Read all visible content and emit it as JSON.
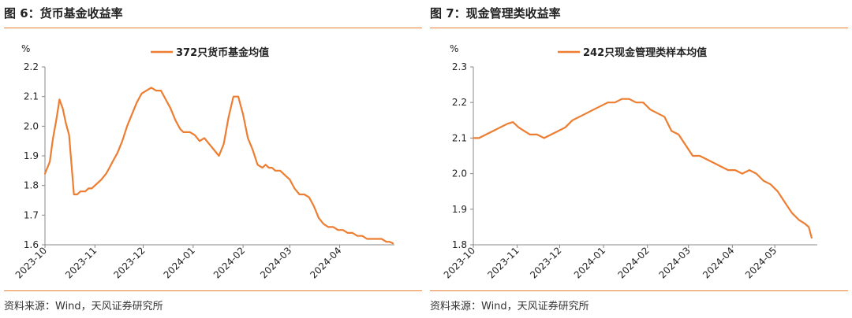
{
  "theme": {
    "line_color": "#ED7D31",
    "rule_color": "#ED7D31",
    "axis_color": "#888888"
  },
  "chart_data": [
    {
      "type": "line",
      "title": "图 6：货币基金收益率",
      "source": "资料来源：Wind，天风证券研究所",
      "ylabel": "%",
      "ylim": [
        1.6,
        2.2
      ],
      "yticks": [
        "1.6",
        "1.7",
        "1.8",
        "1.9",
        "2.0",
        "2.1",
        "2.2"
      ],
      "xlim": [
        "2023-10-01",
        "2024-05-05"
      ],
      "xticks": [
        {
          "date": "2023-10-01",
          "label": "2023-10"
        },
        {
          "date": "2023-11-01",
          "label": "2023-11"
        },
        {
          "date": "2023-12-01",
          "label": "2023-12"
        },
        {
          "date": "2024-01-01",
          "label": "2024-01"
        },
        {
          "date": "2024-02-01",
          "label": "2024-02"
        },
        {
          "date": "2024-03-01",
          "label": "2024-03"
        },
        {
          "date": "2024-04-01",
          "label": "2024-04"
        }
      ],
      "series": [
        {
          "name": "372只货币基金均值",
          "x": [
            "2023-10-01",
            "2023-10-04",
            "2023-10-06",
            "2023-10-08",
            "2023-10-10",
            "2023-10-12",
            "2023-10-14",
            "2023-10-16",
            "2023-10-19",
            "2023-10-20",
            "2023-10-21",
            "2023-10-23",
            "2023-10-26",
            "2023-10-28",
            "2023-10-30",
            "2023-11-01",
            "2023-11-03",
            "2023-11-05",
            "2023-11-08",
            "2023-11-10",
            "2023-11-12",
            "2023-11-15",
            "2023-11-18",
            "2023-11-21",
            "2023-11-24",
            "2023-11-27",
            "2023-11-30",
            "2023-12-03",
            "2023-12-06",
            "2023-12-09",
            "2023-12-12",
            "2023-12-15",
            "2023-12-18",
            "2023-12-21",
            "2023-12-24",
            "2023-12-26",
            "2023-12-28",
            "2023-12-30",
            "2024-01-02",
            "2024-01-05",
            "2024-01-08",
            "2024-01-11",
            "2024-01-14",
            "2024-01-17",
            "2024-01-20",
            "2024-01-23",
            "2024-01-26",
            "2024-01-29",
            "2024-02-01",
            "2024-02-04",
            "2024-02-07",
            "2024-02-10",
            "2024-02-13",
            "2024-02-15",
            "2024-02-17",
            "2024-02-19",
            "2024-02-21",
            "2024-02-24",
            "2024-02-26",
            "2024-02-28",
            "2024-03-01",
            "2024-03-04",
            "2024-03-07",
            "2024-03-10",
            "2024-03-13",
            "2024-03-16",
            "2024-03-19",
            "2024-03-22",
            "2024-03-25",
            "2024-03-28",
            "2024-03-31",
            "2024-04-03",
            "2024-04-06",
            "2024-04-09",
            "2024-04-12",
            "2024-04-15",
            "2024-04-18",
            "2024-04-21",
            "2024-04-24",
            "2024-04-27",
            "2024-04-30",
            "2024-05-02",
            "2024-05-04"
          ],
          "y": [
            1.84,
            1.88,
            1.96,
            2.02,
            2.09,
            2.06,
            2.01,
            1.97,
            1.77,
            1.77,
            1.77,
            1.78,
            1.78,
            1.79,
            1.79,
            1.8,
            1.81,
            1.82,
            1.84,
            1.86,
            1.88,
            1.91,
            1.95,
            2.0,
            2.04,
            2.08,
            2.11,
            2.12,
            2.13,
            2.12,
            2.12,
            2.09,
            2.06,
            2.02,
            1.99,
            1.98,
            1.98,
            1.98,
            1.97,
            1.95,
            1.96,
            1.94,
            1.92,
            1.9,
            1.94,
            2.03,
            2.1,
            2.1,
            2.04,
            1.96,
            1.92,
            1.87,
            1.86,
            1.87,
            1.86,
            1.86,
            1.85,
            1.85,
            1.84,
            1.83,
            1.82,
            1.79,
            1.77,
            1.77,
            1.76,
            1.73,
            1.69,
            1.67,
            1.66,
            1.66,
            1.65,
            1.65,
            1.64,
            1.64,
            1.63,
            1.63,
            1.62,
            1.62,
            1.62,
            1.62,
            1.61,
            1.61,
            1.605
          ]
        }
      ]
    },
    {
      "type": "line",
      "title": "图 7：现金管理类收益率",
      "source": "资料来源：Wind，天风证券研究所",
      "ylabel": "%",
      "ylim": [
        1.8,
        2.3
      ],
      "yticks": [
        "1.8",
        "1.9",
        "2.0",
        "2.1",
        "2.2",
        "2.3"
      ],
      "xlim": [
        "2023-10-01",
        "2024-05-31"
      ],
      "xticks": [
        {
          "date": "2023-10-01",
          "label": "2023-10"
        },
        {
          "date": "2023-11-01",
          "label": "2023-11"
        },
        {
          "date": "2023-12-01",
          "label": "2023-12"
        },
        {
          "date": "2024-01-01",
          "label": "2024-01"
        },
        {
          "date": "2024-02-01",
          "label": "2024-02"
        },
        {
          "date": "2024-03-01",
          "label": "2024-03"
        },
        {
          "date": "2024-04-01",
          "label": "2024-04"
        },
        {
          "date": "2024-05-01",
          "label": "2024-05"
        }
      ],
      "series": [
        {
          "name": "242只现金管理类样本均值",
          "x": [
            "2023-10-01",
            "2023-10-05",
            "2023-10-10",
            "2023-10-15",
            "2023-10-20",
            "2023-10-25",
            "2023-10-29",
            "2023-11-02",
            "2023-11-06",
            "2023-11-10",
            "2023-11-15",
            "2023-11-20",
            "2023-11-25",
            "2023-11-30",
            "2023-12-05",
            "2023-12-10",
            "2023-12-15",
            "2023-12-20",
            "2023-12-25",
            "2023-12-30",
            "2024-01-04",
            "2024-01-09",
            "2024-01-14",
            "2024-01-19",
            "2024-01-24",
            "2024-01-29",
            "2024-02-03",
            "2024-02-08",
            "2024-02-13",
            "2024-02-18",
            "2024-02-23",
            "2024-02-28",
            "2024-03-04",
            "2024-03-09",
            "2024-03-14",
            "2024-03-19",
            "2024-03-24",
            "2024-03-29",
            "2024-04-03",
            "2024-04-08",
            "2024-04-13",
            "2024-04-18",
            "2024-04-23",
            "2024-04-28",
            "2024-05-03",
            "2024-05-08",
            "2024-05-13",
            "2024-05-18",
            "2024-05-22",
            "2024-05-25",
            "2024-05-27"
          ],
          "y": [
            2.1,
            2.1,
            2.11,
            2.12,
            2.13,
            2.14,
            2.145,
            2.13,
            2.12,
            2.11,
            2.11,
            2.1,
            2.11,
            2.12,
            2.13,
            2.15,
            2.16,
            2.17,
            2.18,
            2.19,
            2.2,
            2.2,
            2.21,
            2.21,
            2.2,
            2.2,
            2.18,
            2.17,
            2.16,
            2.12,
            2.11,
            2.08,
            2.05,
            2.05,
            2.04,
            2.03,
            2.02,
            2.01,
            2.01,
            2.0,
            2.01,
            2.0,
            1.98,
            1.97,
            1.95,
            1.92,
            1.89,
            1.87,
            1.86,
            1.85,
            1.82
          ]
        }
      ]
    }
  ]
}
